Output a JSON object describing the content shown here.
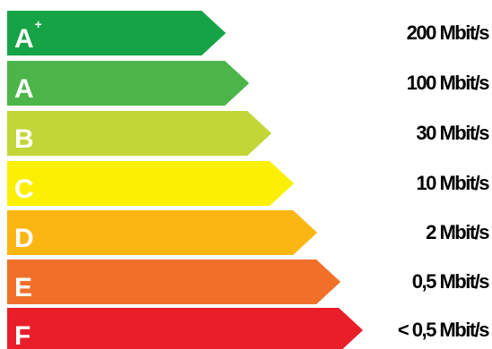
{
  "tiers": [
    {
      "letter": "A",
      "sup": "+",
      "speed": "200 Mbit/s",
      "color": "#16a346"
    },
    {
      "letter": "A",
      "sup": "",
      "speed": "100 Mbit/s",
      "color": "#4bb549"
    },
    {
      "letter": "B",
      "sup": "",
      "speed": "30 Mbit/s",
      "color": "#c2d638"
    },
    {
      "letter": "C",
      "sup": "",
      "speed": "10 Mbit/s",
      "color": "#fbf004"
    },
    {
      "letter": "D",
      "sup": "",
      "speed": "2 Mbit/s",
      "color": "#fbb614"
    },
    {
      "letter": "E",
      "sup": "",
      "speed": "0,5 Mbit/s",
      "color": "#f0702a"
    },
    {
      "letter": "F",
      "sup": "",
      "speed": "< 0,5 Mbit/s",
      "color": "#e81e29"
    }
  ]
}
